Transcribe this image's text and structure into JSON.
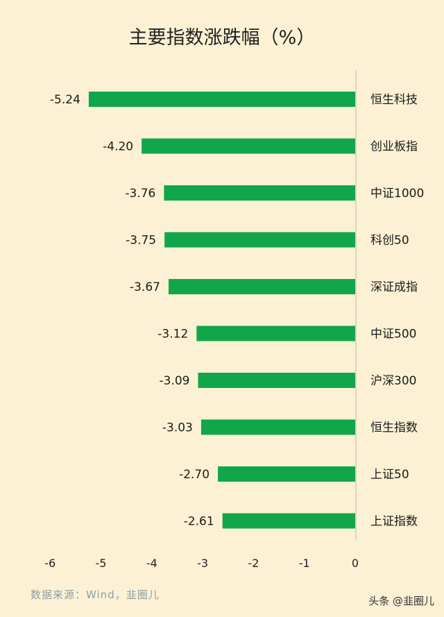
{
  "chart_data": {
    "type": "bar",
    "orientation": "horizontal",
    "title": "主要指数涨跌幅（%）",
    "categories": [
      "恒生科技",
      "创业板指",
      "中证1000",
      "科创50",
      "深证成指",
      "中证500",
      "沪深300",
      "恒生指数",
      "上证50",
      "上证指数"
    ],
    "values": [
      -5.24,
      -4.2,
      -3.76,
      -3.75,
      -3.67,
      -3.12,
      -3.09,
      -3.03,
      -2.7,
      -2.61
    ],
    "value_labels": [
      "-5.24",
      "-4.20",
      "-3.76",
      "-3.75",
      "-3.67",
      "-3.12",
      "-3.09",
      "-3.03",
      "-2.70",
      "-2.61"
    ],
    "xlim": [
      -6,
      0
    ],
    "xticks": [
      "-6",
      "-5",
      "-4",
      "-3",
      "-2",
      "-1",
      "0"
    ],
    "grid": false,
    "bar_color": "#12a64a"
  },
  "footer": {
    "source": "数据来源：Wind，韭圈儿",
    "watermark": "头条 @韭圈儿"
  }
}
